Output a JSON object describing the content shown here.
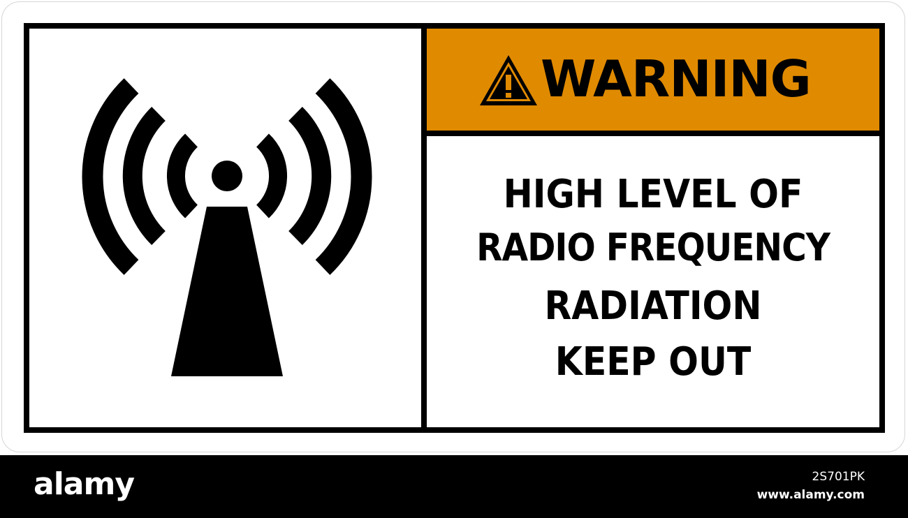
{
  "sign": {
    "header_word": "WARNING",
    "header_icon": "warning-triangle-icon",
    "symbol_icon": "radio-transmitter-tower-icon",
    "header_color": "#e08a00",
    "message_lines": [
      "HIGH LEVEL OF",
      "RADIO FREQUENCY",
      "RADIATION",
      "KEEP OUT"
    ]
  },
  "footer": {
    "brand": "alamy",
    "image_id": "2S701PK",
    "url": "www.alamy.com"
  },
  "watermark": "alamy"
}
